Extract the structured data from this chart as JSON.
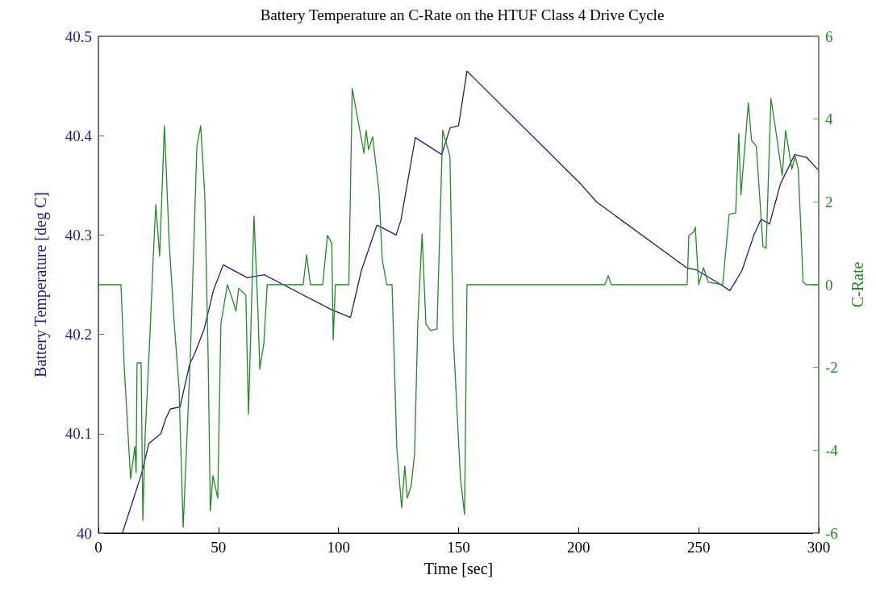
{
  "chart_data": {
    "type": "line",
    "title": "Battery Temperature an C-Rate on the HTUF Class 4 Drive Cycle",
    "xlabel": "Time [sec]",
    "ylabel": "Battery Temperature [deg C]",
    "y2label": "C-Rate",
    "xlim": [
      0,
      300
    ],
    "xticks": [
      0,
      50,
      100,
      150,
      200,
      250,
      300
    ],
    "ylim": [
      40,
      40.5
    ],
    "yticks": [
      40,
      40.1,
      40.2,
      40.3,
      40.4,
      40.5
    ],
    "y2lim": [
      -6,
      6
    ],
    "y2ticks": [
      -6,
      -4,
      -2,
      0,
      2,
      4,
      6
    ],
    "marker": "none",
    "line_style": "solid",
    "series": [
      {
        "color": "#1c1c8a",
        "x": [
          10,
          18,
          21,
          26,
          28,
          30,
          34,
          38,
          40,
          44,
          48,
          52,
          62,
          69,
          77,
          97,
          105,
          109.5,
          116,
          124,
          126,
          132,
          143,
          146.5,
          150,
          153.5,
          201,
          207.6,
          245,
          249,
          258.6,
          263,
          268,
          273,
          276,
          279.5,
          284,
          290,
          295,
          299.6
        ],
        "values": [
          40.0,
          40.06,
          40.09,
          40.1,
          40.115,
          40.125,
          40.127,
          40.17,
          40.18,
          40.205,
          40.245,
          40.27,
          40.257,
          40.26,
          40.25,
          40.225,
          40.217,
          40.264,
          40.31,
          40.3,
          40.315,
          40.398,
          40.381,
          40.408,
          40.41,
          40.465,
          40.351,
          40.333,
          40.267,
          40.265,
          40.251,
          40.244,
          40.264,
          40.3,
          40.316,
          40.311,
          40.351,
          40.381,
          40.378,
          40.366
        ]
      },
      {
        "color": "#218a21",
        "axis": "y2",
        "x": [
          0,
          9.4,
          10.8,
          12.8,
          13.4,
          15.2,
          15.7,
          16.1,
          17.8,
          18.5,
          19.5,
          21.5,
          22.8,
          23.9,
          25.5,
          27.5,
          29.5,
          31.6,
          33.6,
          35.3,
          38.3,
          41,
          42.6,
          44.3,
          45.7,
          46.6,
          47.7,
          49.7,
          51,
          53.7,
          55.7,
          57.3,
          58.4,
          61.4,
          62.5,
          64.8,
          66.5,
          67.2,
          68.9,
          70.3,
          85.3,
          86.7,
          88.3,
          93.4,
          95.4,
          97.2,
          97.8,
          98.7,
          104.3,
          105.7,
          110.6,
          111.5,
          112.5,
          114.2,
          116.9,
          118.2,
          120.1,
          122.3,
          124.3,
          126.3,
          127.6,
          128.6,
          130.3,
          131.7,
          133,
          134.8,
          136.4,
          138.4,
          141,
          143.4,
          146.4,
          147.8,
          150.8,
          152.5,
          153.5,
          210.9,
          212.3,
          213.6,
          245.2,
          245.9,
          247.9,
          248.6,
          250,
          252,
          254,
          260,
          262.7,
          265.4,
          266.7,
          267.6,
          270.7,
          272,
          274,
          276.8,
          278.1,
          280.1,
          282.1,
          284.8,
          286.2,
          288.8,
          290.2,
          291.5,
          293.5,
          294.9,
          299.6
        ],
        "values": [
          0,
          0,
          -2.04,
          -4.07,
          -4.69,
          -3.91,
          -4.54,
          -1.89,
          -1.89,
          -5.7,
          -3.6,
          -1.18,
          0.61,
          1.93,
          0.69,
          3.84,
          1.0,
          -0.95,
          -2.51,
          -5.86,
          -1.73,
          3.34,
          3.84,
          2.17,
          -1.73,
          -5.47,
          -4.61,
          -5.16,
          -0.95,
          0,
          -0.33,
          -0.64,
          -0.09,
          -0.25,
          -3.13,
          1.66,
          -0.72,
          -2.04,
          -1.42,
          0,
          0,
          0.72,
          0,
          0,
          1.19,
          1.0,
          -1.34,
          0,
          0,
          4.74,
          3.18,
          3.73,
          3.26,
          3.57,
          2.24,
          0.61,
          0,
          0,
          -3.99,
          -5.39,
          -4.38,
          -5.16,
          -4.85,
          -4.07,
          -0.95,
          1.23,
          -0.95,
          -1.11,
          -1.07,
          3.73,
          3.1,
          -1.26,
          -4.69,
          -5.55,
          0,
          0,
          0.22,
          0,
          0,
          1.19,
          1.27,
          1.39,
          0,
          0.41,
          0.06,
          0,
          1.7,
          1.73,
          3.65,
          2.17,
          4.39,
          3.49,
          3.34,
          0.92,
          0.88,
          4.5,
          3.73,
          2.63,
          3.73,
          2.79,
          3.1,
          2.79,
          0.06,
          0,
          0
        ]
      }
    ]
  }
}
